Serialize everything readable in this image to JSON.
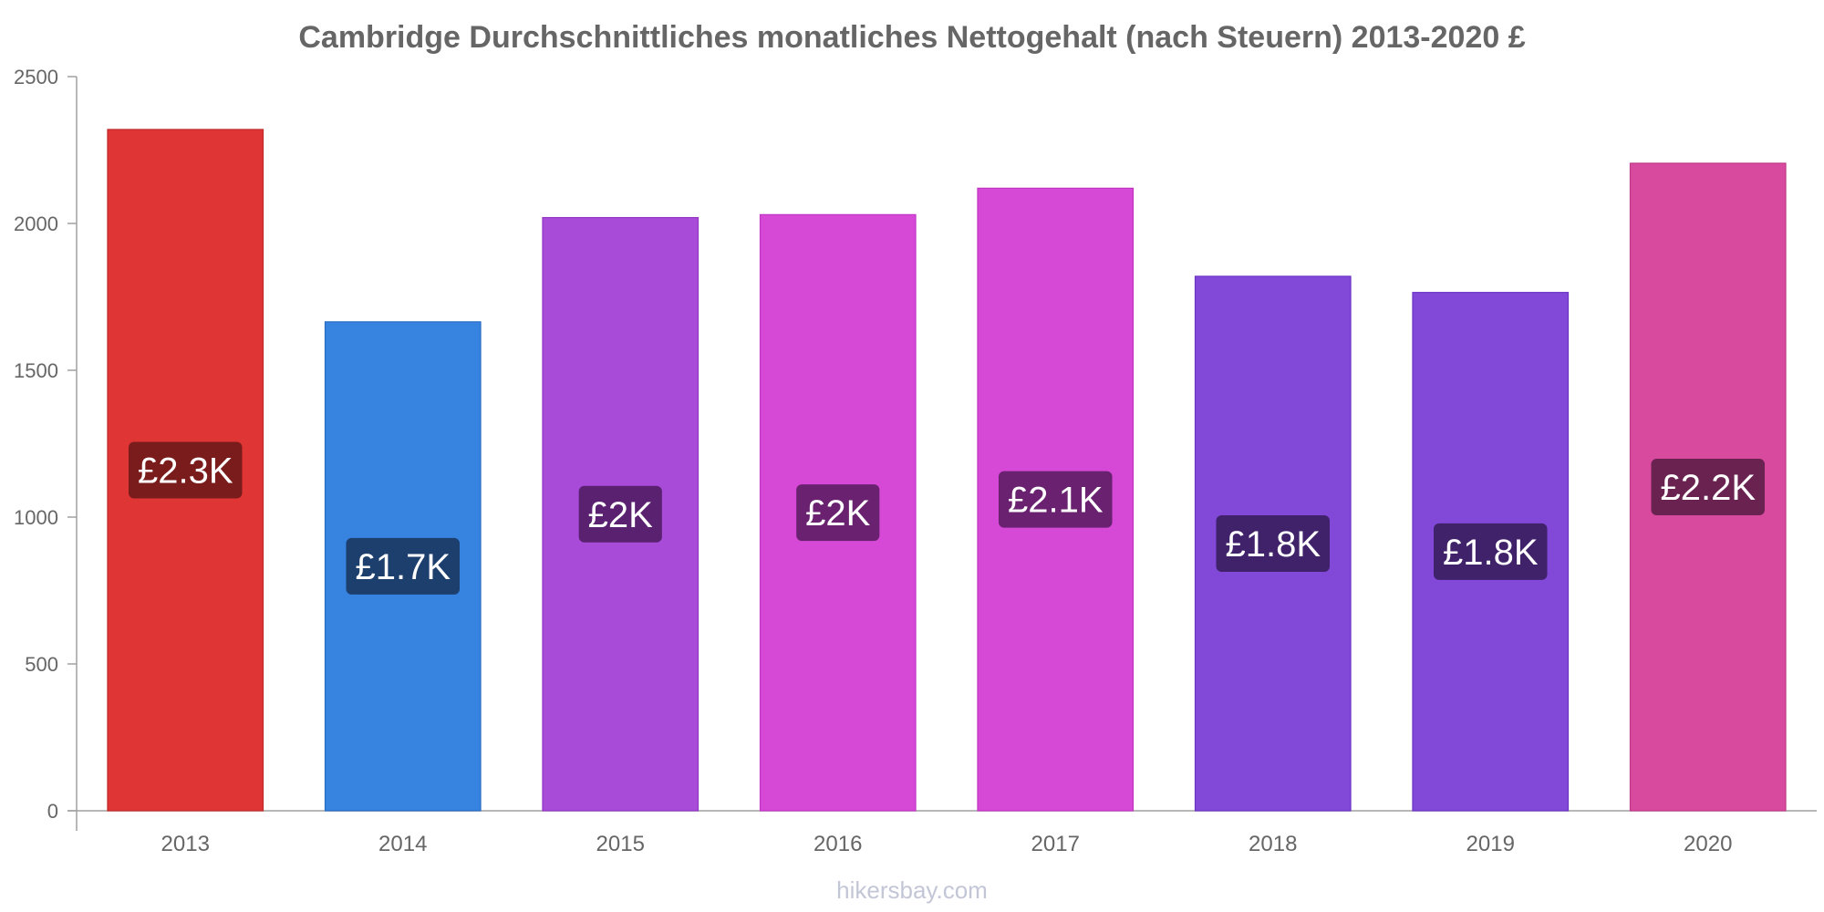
{
  "chart_data": {
    "type": "bar",
    "title": "Cambridge Durchschnittliches monatliches Nettogehalt (nach Steuern) 2013-2020 £",
    "xlabel": "",
    "ylabel": "",
    "ylim": [
      0,
      2500
    ],
    "yticks": [
      0,
      500,
      1000,
      1500,
      2000,
      2500
    ],
    "categories": [
      "2013",
      "2014",
      "2015",
      "2016",
      "2017",
      "2018",
      "2019",
      "2020"
    ],
    "values": [
      2320,
      1665,
      2020,
      2030,
      2120,
      1820,
      1765,
      2205
    ],
    "data_labels": [
      "£2.3K",
      "£1.7K",
      "£2K",
      "£2K",
      "£2.1K",
      "£1.8K",
      "£1.8K",
      "£2.2K"
    ],
    "bar_colors": [
      "#e03535",
      "#3683e0",
      "#a94bd9",
      "#d648d6",
      "#d648d6",
      "#8249d9",
      "#8249d9",
      "#d84a9e"
    ],
    "bar_border_colors": [
      "#c02828",
      "#2a6cc0",
      "#9035c4",
      "#c035c4",
      "#c035c4",
      "#6b34c4",
      "#6b34c4",
      "#c03888"
    ],
    "label_colors": [
      "#7a1c1c",
      "#1d3f6e",
      "#5a2170",
      "#6a2270",
      "#6a2270",
      "#40226a",
      "#40226a",
      "#6a2250"
    ],
    "grid": false,
    "legend": "none"
  },
  "footer": {
    "watermark": "hikersbay.com"
  },
  "colors": {
    "axis": "#a0a0a0",
    "text": "#666666"
  }
}
